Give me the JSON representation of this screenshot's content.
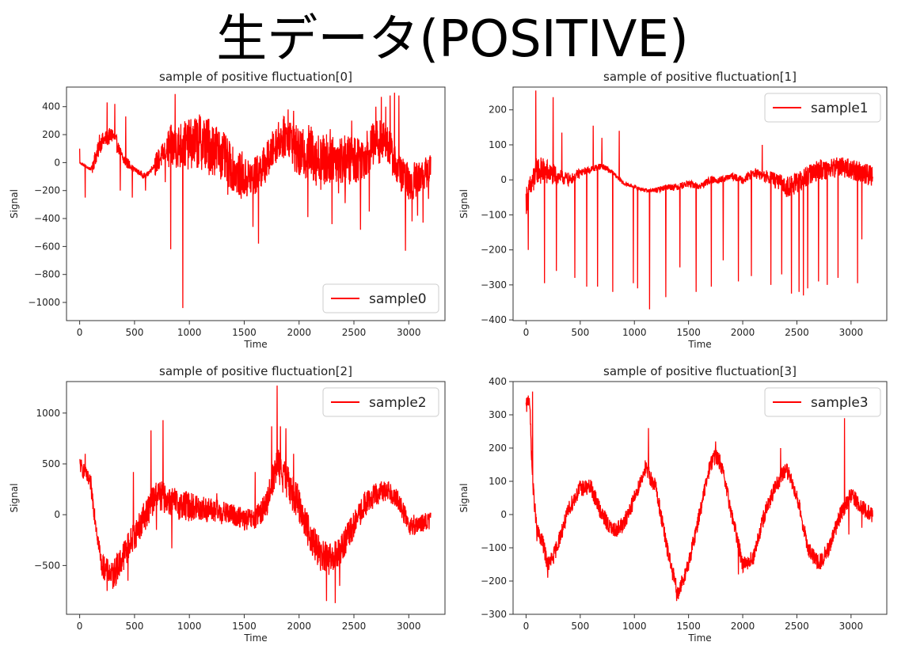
{
  "page": {
    "title": "生データ(POSITIVE)"
  },
  "colors": {
    "series": "#ff0000",
    "axes": "#333333",
    "legend_border": "#cccccc"
  },
  "chart_data": [
    {
      "type": "line",
      "title": "sample of positive fluctuation[0]",
      "xlabel": "Time",
      "ylabel": "Signal",
      "xlim": [
        -120,
        3330
      ],
      "ylim": [
        -1130,
        540
      ],
      "xticks": [
        0,
        500,
        1000,
        1500,
        2000,
        2500,
        3000
      ],
      "yticks": [
        400,
        200,
        0,
        -200,
        -400,
        -600,
        -800,
        -1000
      ],
      "ytick_labels": [
        "400",
        "200",
        "0",
        "−200",
        "−400",
        "−600",
        "−800",
        "−1000"
      ],
      "legend": "lower-right",
      "series": [
        {
          "name": "sample0",
          "x": [
            0,
            100,
            200,
            300,
            400,
            500,
            600,
            700,
            800,
            900,
            1000,
            1100,
            1200,
            1300,
            1400,
            1500,
            1600,
            1700,
            1800,
            1900,
            2000,
            2100,
            2200,
            2300,
            2400,
            2500,
            2600,
            2700,
            2800,
            2900,
            3000,
            3100,
            3200
          ],
          "y": [
            0,
            -50,
            150,
            200,
            20,
            -50,
            -100,
            0,
            100,
            120,
            130,
            150,
            120,
            50,
            -50,
            -120,
            -100,
            0,
            150,
            200,
            50,
            80,
            0,
            50,
            20,
            20,
            50,
            150,
            150,
            -50,
            -150,
            -100,
            -50
          ],
          "spike_x": [
            0,
            50,
            180,
            250,
            320,
            370,
            420,
            480,
            600,
            780,
            830,
            870,
            940,
            1000,
            1100,
            1180,
            1350,
            1480,
            1580,
            1630,
            1750,
            1820,
            1900,
            1950,
            2080,
            2200,
            2300,
            2360,
            2420,
            2480,
            2560,
            2640,
            2700,
            2750,
            2790,
            2830,
            2870,
            2910,
            2970,
            3030,
            3080,
            3130,
            3180
          ],
          "spike_y": [
            100,
            -250,
            200,
            430,
            420,
            -200,
            330,
            -250,
            -200,
            -140,
            -620,
            490,
            -1040,
            200,
            330,
            -90,
            -230,
            80,
            -460,
            -580,
            -20,
            210,
            380,
            370,
            -390,
            150,
            -440,
            -220,
            -290,
            300,
            -480,
            -350,
            400,
            470,
            400,
            480,
            500,
            480,
            -630,
            -420,
            -380,
            -430,
            -260
          ],
          "noise": [
            10,
            60,
            60,
            40,
            20,
            20,
            80,
            160,
            180,
            200,
            200,
            180,
            160,
            150,
            140,
            140,
            150,
            180,
            200,
            200,
            180,
            180,
            170,
            160,
            140,
            130,
            140,
            110
          ]
        }
      ]
    },
    {
      "type": "line",
      "title": "sample of positive fluctuation[1]",
      "xlabel": "Time",
      "ylabel": "Signal",
      "xlim": [
        -120,
        3330
      ],
      "ylim": [
        -402,
        265
      ],
      "xticks": [
        0,
        500,
        1000,
        1500,
        2000,
        2500,
        3000
      ],
      "yticks": [
        200,
        100,
        0,
        -100,
        -200,
        -300,
        -400
      ],
      "ytick_labels": [
        "200",
        "100",
        "0",
        "−100",
        "−200",
        "−300",
        "−400"
      ],
      "legend": "top-right",
      "series": [
        {
          "name": "sample1",
          "x": [
            0,
            100,
            200,
            300,
            400,
            500,
            600,
            700,
            800,
            900,
            1000,
            1100,
            1200,
            1300,
            1400,
            1500,
            1600,
            1700,
            1800,
            1900,
            2000,
            2100,
            2200,
            2300,
            2400,
            2500,
            2600,
            2700,
            2800,
            2900,
            3000,
            3100,
            3200
          ],
          "y": [
            -60,
            30,
            20,
            10,
            0,
            20,
            30,
            40,
            20,
            -10,
            -20,
            -30,
            -30,
            -20,
            -20,
            -10,
            -20,
            0,
            0,
            10,
            0,
            20,
            10,
            0,
            -20,
            -10,
            10,
            30,
            30,
            40,
            30,
            20,
            10
          ],
          "spike_x": [
            20,
            70,
            90,
            170,
            250,
            280,
            330,
            450,
            560,
            620,
            660,
            700,
            800,
            860,
            990,
            1030,
            1140,
            1290,
            1420,
            1570,
            1710,
            1820,
            1960,
            2080,
            2180,
            2260,
            2360,
            2450,
            2520,
            2560,
            2600,
            2700,
            2780,
            2880,
            3060,
            3100
          ],
          "spike_y": [
            -200,
            -30,
            255,
            -295,
            236,
            -260,
            135,
            -280,
            -305,
            155,
            -305,
            120,
            -320,
            140,
            -295,
            -310,
            -370,
            -335,
            -250,
            -320,
            -305,
            -230,
            -290,
            -275,
            100,
            -300,
            -270,
            -325,
            -320,
            -330,
            -310,
            -290,
            -300,
            -280,
            -295,
            -170
          ],
          "noise": [
            40,
            40,
            30,
            20,
            15,
            10,
            10,
            8,
            6,
            5,
            5,
            6,
            8,
            10,
            10,
            10,
            10,
            10,
            10,
            10,
            12,
            15,
            20,
            25,
            30,
            30,
            30,
            30,
            30,
            30,
            30,
            30
          ]
        }
      ]
    },
    {
      "type": "line",
      "title": "sample of positive fluctuation[2]",
      "xlabel": "Time",
      "ylabel": "Signal",
      "xlim": [
        -120,
        3330
      ],
      "ylim": [
        -980,
        1310
      ],
      "xticks": [
        0,
        500,
        1000,
        1500,
        2000,
        2500,
        3000
      ],
      "yticks": [
        1000,
        500,
        0,
        -500
      ],
      "ytick_labels": [
        "1000",
        "500",
        "0",
        "−500"
      ],
      "legend": "top-right",
      "series": [
        {
          "name": "sample2",
          "x": [
            0,
            100,
            200,
            300,
            400,
            500,
            600,
            700,
            800,
            900,
            1000,
            1100,
            1200,
            1300,
            1400,
            1500,
            1600,
            1700,
            1800,
            1900,
            2000,
            2100,
            2200,
            2300,
            2400,
            2500,
            2600,
            2700,
            2800,
            2900,
            3000,
            3100,
            3200
          ],
          "y": [
            500,
            300,
            -500,
            -600,
            -400,
            -200,
            0,
            200,
            150,
            100,
            80,
            60,
            40,
            20,
            0,
            -50,
            -50,
            100,
            500,
            300,
            100,
            -200,
            -400,
            -450,
            -300,
            -100,
            100,
            200,
            250,
            150,
            -100,
            -100,
            -50
          ],
          "spike_x": [
            50,
            250,
            330,
            440,
            490,
            650,
            700,
            760,
            780,
            840,
            1250,
            1600,
            1750,
            1800,
            1830,
            1880,
            1950,
            2250,
            2330,
            2370
          ],
          "spike_y": [
            600,
            -750,
            -700,
            -650,
            420,
            830,
            -150,
            930,
            120,
            -330,
            210,
            420,
            870,
            1270,
            870,
            850,
            600,
            -850,
            -870,
            -700
          ],
          "noise": [
            80,
            100,
            120,
            150,
            150,
            150,
            150,
            150,
            150,
            150,
            140,
            130,
            120,
            110,
            110,
            110,
            120,
            160,
            180,
            180,
            170,
            160,
            160,
            150,
            140,
            130,
            120,
            110,
            100,
            100,
            100,
            90
          ]
        }
      ]
    },
    {
      "type": "line",
      "title": "sample of positive fluctuation[3]",
      "xlabel": "Time",
      "ylabel": "Signal",
      "xlim": [
        -120,
        3330
      ],
      "ylim": [
        -300,
        400
      ],
      "xticks": [
        0,
        500,
        1000,
        1500,
        2000,
        2500,
        3000
      ],
      "yticks": [
        400,
        300,
        200,
        100,
        0,
        -100,
        -200,
        -300
      ],
      "ytick_labels": [
        "400",
        "300",
        "200",
        "100",
        "0",
        "−100",
        "−200",
        "−300"
      ],
      "legend": "top-right",
      "series": [
        {
          "name": "sample3",
          "x": [
            0,
            30,
            60,
            100,
            150,
            200,
            250,
            300,
            400,
            500,
            600,
            700,
            800,
            900,
            1000,
            1100,
            1200,
            1300,
            1400,
            1500,
            1600,
            1700,
            1750,
            1800,
            1900,
            2000,
            2100,
            2200,
            2300,
            2400,
            2500,
            2600,
            2700,
            2800,
            2900,
            3000,
            3100,
            3200
          ],
          "y": [
            320,
            360,
            100,
            -50,
            -80,
            -150,
            -130,
            -80,
            20,
            80,
            80,
            0,
            -50,
            -30,
            50,
            140,
            80,
            -100,
            -240,
            -150,
            0,
            150,
            180,
            150,
            0,
            -150,
            -130,
            0,
            80,
            140,
            60,
            -100,
            -150,
            -100,
            0,
            60,
            20,
            0
          ],
          "spike_x": [
            60,
            100,
            200,
            1130,
            1390,
            1750,
            1960,
            2350,
            2940,
            2980,
            3100
          ],
          "spike_y": [
            370,
            -80,
            -190,
            260,
            -260,
            220,
            -180,
            200,
            290,
            -60,
            -40
          ],
          "noise": [
            25,
            25,
            25,
            25,
            25,
            25,
            25,
            25,
            25,
            25,
            25,
            25,
            25,
            25,
            25,
            25,
            25,
            25,
            25,
            25,
            25,
            25,
            25,
            25,
            25,
            25,
            25,
            25,
            25,
            25,
            25,
            25
          ]
        }
      ]
    }
  ]
}
